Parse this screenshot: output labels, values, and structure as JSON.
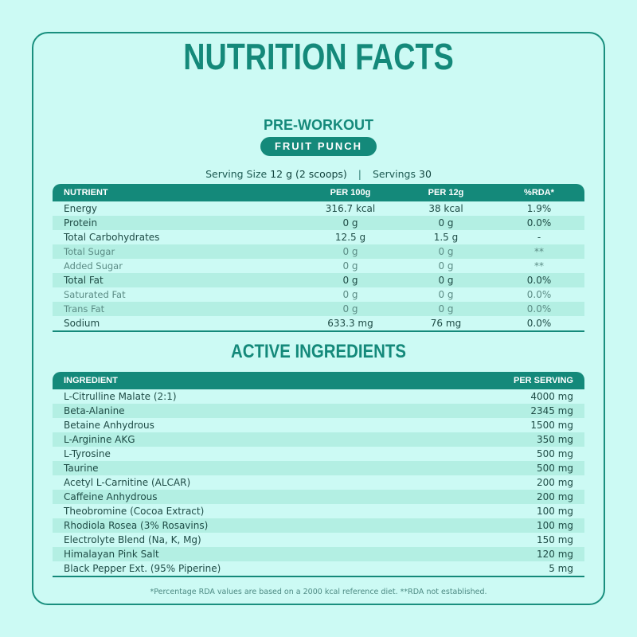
{
  "title": "NUTRITION FACTS",
  "subtitle": "PRE-WORKOUT",
  "flavor": "FRUIT PUNCH",
  "serving": {
    "size_label": "Serving Size",
    "size_value": "12 g (2 scoops)",
    "separator": "|",
    "servings_label": "Servings",
    "servings_value": "30"
  },
  "nutrition": {
    "headers": [
      "NUTRIENT",
      "PER 100g",
      "PER 12g",
      "%RDA*"
    ],
    "rows": [
      {
        "name": "Energy",
        "per100": "316.7 kcal",
        "per12": "38 kcal",
        "rda": "1.9%",
        "sub": false
      },
      {
        "name": "Protein",
        "per100": "0 g",
        "per12": "0 g",
        "rda": "0.0%",
        "sub": false
      },
      {
        "name": "Total Carbohydrates",
        "per100": "12.5 g",
        "per12": "1.5 g",
        "rda": "-",
        "sub": false
      },
      {
        "name": "Total Sugar",
        "per100": "0 g",
        "per12": "0 g",
        "rda": "**",
        "sub": true
      },
      {
        "name": "Added Sugar",
        "per100": "0 g",
        "per12": "0 g",
        "rda": "**",
        "sub": true
      },
      {
        "name": "Total Fat",
        "per100": "0 g",
        "per12": "0 g",
        "rda": "0.0%",
        "sub": false
      },
      {
        "name": "Saturated Fat",
        "per100": "0 g",
        "per12": "0 g",
        "rda": "0.0%",
        "sub": true
      },
      {
        "name": "Trans Fat",
        "per100": "0 g",
        "per12": "0 g",
        "rda": "0.0%",
        "sub": true
      },
      {
        "name": "Sodium",
        "per100": "633.3 mg",
        "per12": "76 mg",
        "rda": "0.0%",
        "sub": false
      }
    ]
  },
  "active_title": "ACTIVE INGREDIENTS",
  "ingredients": {
    "headers": [
      "INGREDIENT",
      "PER SERVING"
    ],
    "rows": [
      {
        "name": "L-Citrulline Malate (2:1)",
        "amount": "4000 mg"
      },
      {
        "name": "Beta-Alanine",
        "amount": "2345 mg"
      },
      {
        "name": "Betaine Anhydrous",
        "amount": "1500 mg"
      },
      {
        "name": "L-Arginine AKG",
        "amount": "350 mg"
      },
      {
        "name": "L-Tyrosine",
        "amount": "500 mg"
      },
      {
        "name": "Taurine",
        "amount": "500 mg"
      },
      {
        "name": "Acetyl L-Carnitine (ALCAR)",
        "amount": "200 mg"
      },
      {
        "name": "Caffeine Anhydrous",
        "amount": "200 mg"
      },
      {
        "name": "Theobromine (Cocoa Extract)",
        "amount": "100 mg"
      },
      {
        "name": "Rhodiola Rosea (3% Rosavins)",
        "amount": "100 mg"
      },
      {
        "name": "Electrolyte Blend (Na, K, Mg)",
        "amount": "150 mg"
      },
      {
        "name": "Himalayan Pink Salt",
        "amount": "120 mg"
      },
      {
        "name": "Black Pepper Ext. (95% Piperine)",
        "amount": "5 mg"
      }
    ]
  },
  "footnote": "*Percentage RDA values are based on a 2000 kcal reference diet.  **RDA not established."
}
